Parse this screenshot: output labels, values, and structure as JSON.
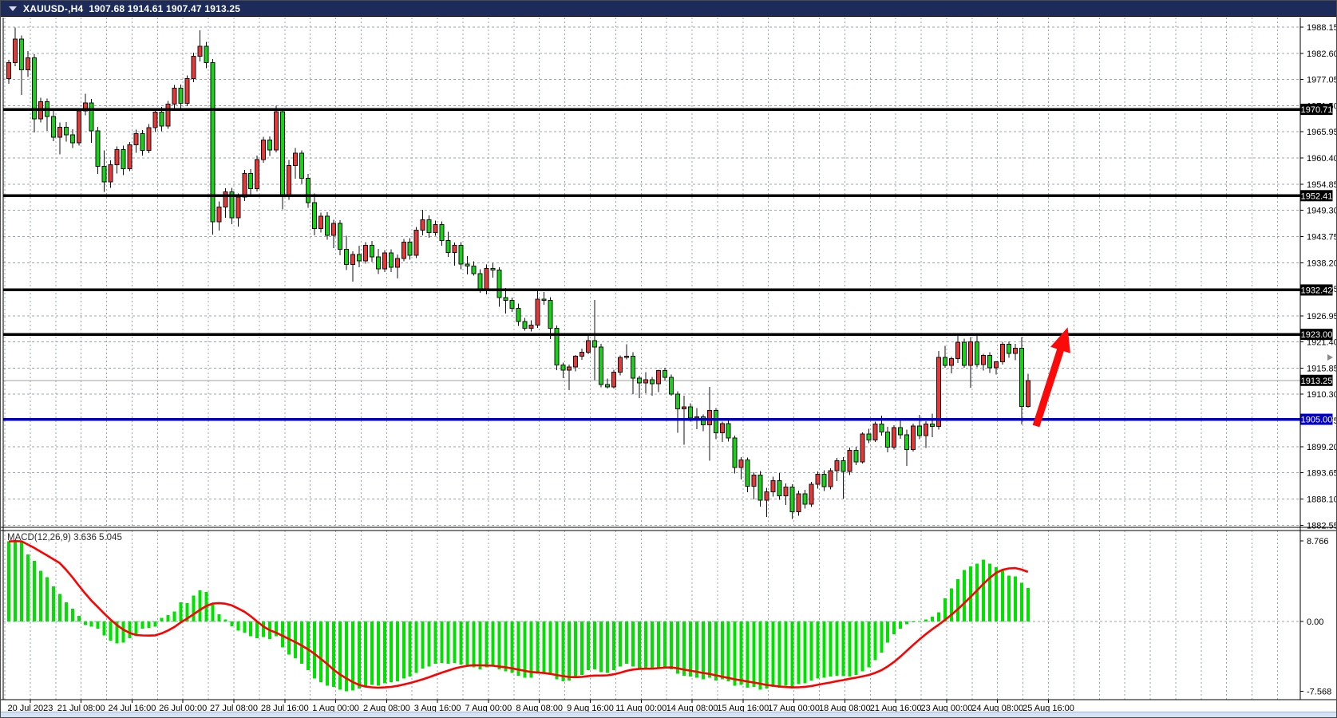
{
  "window": {
    "title": "XAUUSD-,H4  1907.68 1914.61 1907.47 1913.25",
    "symbol": "XAUUSD-",
    "timeframe": "H4"
  },
  "colors": {
    "bull_candle": "#e83737",
    "bear_candle": "#16d316",
    "candle_outline": "#111111",
    "level_black": "#000000",
    "level_blue": "#0000c8",
    "current_price_line": "#a0a0a0",
    "grid": "#9aa5b2",
    "macd_histogram": "#00e100",
    "macd_signal": "#ff0000",
    "arrow": "#fb0a0a",
    "titlebar": "#1c2b5a",
    "axis_text": "#000000"
  },
  "price_axis": {
    "ticks": [
      "1988.15",
      "1982.60",
      "1977.05",
      "1971.50",
      "1965.95",
      "1960.40",
      "1954.85",
      "1949.30",
      "1943.75",
      "1938.20",
      "1932.65",
      "1926.95",
      "1921.40",
      "1915.85",
      "1910.30",
      "1904.75",
      "1899.20",
      "1893.65",
      "1888.10",
      "1882.55"
    ]
  },
  "time_axis": {
    "labels": [
      "20 Jul 2023",
      "21 Jul 08:00",
      "24 Jul 16:00",
      "26 Jul 00:00",
      "27 Jul 08:00",
      "28 Jul 16:00",
      "1 Aug 00:00",
      "2 Aug 08:00",
      "3 Aug 16:00",
      "7 Aug 00:00",
      "8 Aug 08:00",
      "9 Aug 16:00",
      "11 Aug 00:00",
      "14 Aug 08:00",
      "15 Aug 16:00",
      "17 Aug 00:00",
      "18 Aug 08:00",
      "21 Aug 16:00",
      "23 Aug 00:00",
      "24 Aug 08:00",
      "25 Aug 16:00"
    ]
  },
  "indicator_label": "MACD(12,26,9) 3.636 5.045",
  "chart_data": {
    "type": "candlestick",
    "symbol": "XAUUSD-",
    "timeframe": "H4",
    "title": "XAUUSD-,H4",
    "current_bar": {
      "open": 1907.68,
      "high": 1914.61,
      "low": 1907.47,
      "close": 1913.25
    },
    "ylim": [
      1882.55,
      1988.15
    ],
    "grid": true,
    "color_scheme_note": "bull candles red, bear candles green",
    "horizontal_levels": [
      {
        "price": 1970.71,
        "label": "1970.71",
        "color": "#000000"
      },
      {
        "price": 1952.41,
        "label": "1952.41",
        "color": "#000000"
      },
      {
        "price": 1932.42,
        "label": "1932.42",
        "color": "#000000"
      },
      {
        "price": 1923.0,
        "label": "1923.00",
        "color": "#000000"
      },
      {
        "price": 1905.0,
        "label": "1905.00",
        "color": "#0000c8"
      }
    ],
    "current_price": {
      "value": 1913.25,
      "label": "1913.25"
    },
    "candles": [
      [
        1977.2,
        1981.2,
        1976.1,
        1980.6
      ],
      [
        1980.6,
        1988.1,
        1979.9,
        1985.6
      ],
      [
        1985.6,
        1986.4,
        1973.8,
        1979.1
      ],
      [
        1979.1,
        1983.1,
        1977.6,
        1981.6
      ],
      [
        1981.6,
        1982.4,
        1965.8,
        1968.7
      ],
      [
        1968.7,
        1973.2,
        1967.9,
        1972.3
      ],
      [
        1972.3,
        1973.0,
        1966.2,
        1969.2
      ],
      [
        1969.2,
        1970.5,
        1964.0,
        1964.8
      ],
      [
        1964.8,
        1967.9,
        1961.2,
        1966.9
      ],
      [
        1966.9,
        1968.0,
        1963.9,
        1965.3
      ],
      [
        1965.3,
        1966.5,
        1962.5,
        1963.6
      ],
      [
        1963.6,
        1971.0,
        1963.0,
        1970.4
      ],
      [
        1970.4,
        1974.0,
        1969.5,
        1972.1
      ],
      [
        1972.1,
        1972.9,
        1963.6,
        1966.2
      ],
      [
        1966.2,
        1967.0,
        1957.0,
        1958.6
      ],
      [
        1958.6,
        1962.0,
        1953.2,
        1955.3
      ],
      [
        1955.3,
        1959.9,
        1954.1,
        1959.0
      ],
      [
        1959.0,
        1962.9,
        1957.1,
        1962.2
      ],
      [
        1962.2,
        1963.0,
        1956.8,
        1958.1
      ],
      [
        1958.1,
        1963.8,
        1957.6,
        1963.2
      ],
      [
        1963.2,
        1966.4,
        1961.5,
        1965.6
      ],
      [
        1965.6,
        1966.3,
        1960.9,
        1962.0
      ],
      [
        1962.0,
        1967.6,
        1961.4,
        1966.8
      ],
      [
        1966.8,
        1970.8,
        1965.9,
        1970.1
      ],
      [
        1970.1,
        1971.2,
        1966.1,
        1967.2
      ],
      [
        1967.2,
        1972.5,
        1966.6,
        1971.8
      ],
      [
        1971.8,
        1975.9,
        1971.0,
        1975.2
      ],
      [
        1975.2,
        1976.0,
        1970.9,
        1972.0
      ],
      [
        1972.0,
        1977.9,
        1971.4,
        1977.2
      ],
      [
        1977.2,
        1982.7,
        1976.5,
        1982.0
      ],
      [
        1982.0,
        1987.5,
        1980.9,
        1984.1
      ],
      [
        1984.1,
        1985.0,
        1979.4,
        1980.6
      ],
      [
        1980.6,
        1981.4,
        1944.2,
        1946.9
      ],
      [
        1946.9,
        1951.2,
        1945.0,
        1950.0
      ],
      [
        1950.0,
        1954.0,
        1947.7,
        1953.2
      ],
      [
        1953.2,
        1954.1,
        1946.4,
        1947.7
      ],
      [
        1947.7,
        1952.9,
        1945.9,
        1952.1
      ],
      [
        1952.1,
        1957.9,
        1951.3,
        1957.1
      ],
      [
        1957.1,
        1958.0,
        1952.6,
        1953.9
      ],
      [
        1953.9,
        1960.9,
        1953.3,
        1960.1
      ],
      [
        1960.1,
        1964.9,
        1959.4,
        1964.2
      ],
      [
        1964.2,
        1965.0,
        1960.8,
        1962.1
      ],
      [
        1962.1,
        1971.5,
        1961.6,
        1970.2
      ],
      [
        1970.2,
        1970.9,
        1949.5,
        1952.2
      ],
      [
        1952.2,
        1960.0,
        1951.5,
        1958.8
      ],
      [
        1958.8,
        1962.5,
        1956.0,
        1961.4
      ],
      [
        1961.4,
        1962.0,
        1954.9,
        1956.1
      ],
      [
        1956.1,
        1957.0,
        1949.8,
        1950.9
      ],
      [
        1950.9,
        1952.9,
        1944.0,
        1945.4
      ],
      [
        1945.4,
        1948.8,
        1944.6,
        1948.1
      ],
      [
        1948.1,
        1948.9,
        1943.1,
        1944.0
      ],
      [
        1944.0,
        1947.3,
        1941.3,
        1946.5
      ],
      [
        1946.5,
        1947.2,
        1939.8,
        1941.0
      ],
      [
        1941.0,
        1943.9,
        1936.6,
        1937.8
      ],
      [
        1937.8,
        1940.6,
        1934.2,
        1939.9
      ],
      [
        1939.9,
        1941.8,
        1937.2,
        1938.6
      ],
      [
        1938.6,
        1942.6,
        1938.0,
        1941.9
      ],
      [
        1941.9,
        1942.8,
        1938.3,
        1939.4
      ],
      [
        1939.4,
        1941.1,
        1935.8,
        1936.9
      ],
      [
        1936.9,
        1940.9,
        1936.2,
        1940.3
      ],
      [
        1940.3,
        1941.0,
        1936.2,
        1937.2
      ],
      [
        1937.2,
        1939.9,
        1934.9,
        1939.1
      ],
      [
        1939.1,
        1943.2,
        1938.5,
        1942.6
      ],
      [
        1942.6,
        1943.4,
        1938.8,
        1939.8
      ],
      [
        1939.8,
        1945.8,
        1939.2,
        1945.1
      ],
      [
        1945.1,
        1949.4,
        1944.0,
        1947.3
      ],
      [
        1947.3,
        1948.2,
        1943.5,
        1944.6
      ],
      [
        1944.6,
        1947.1,
        1943.9,
        1946.3
      ],
      [
        1946.3,
        1947.0,
        1941.8,
        1942.9
      ],
      [
        1942.9,
        1944.8,
        1939.4,
        1940.4
      ],
      [
        1940.4,
        1942.5,
        1937.6,
        1941.9
      ],
      [
        1941.9,
        1942.6,
        1936.8,
        1937.9
      ],
      [
        1937.9,
        1939.6,
        1935.7,
        1937.5
      ],
      [
        1937.5,
        1938.5,
        1935.5,
        1935.9
      ],
      [
        1935.9,
        1936.8,
        1931.8,
        1932.4
      ],
      [
        1932.4,
        1937.8,
        1931.5,
        1937.0
      ],
      [
        1937.0,
        1938.2,
        1935.0,
        1936.6
      ],
      [
        1936.6,
        1937.2,
        1928.9,
        1930.8
      ],
      [
        1930.8,
        1932.8,
        1927.4,
        1930.2
      ],
      [
        1930.2,
        1930.8,
        1927.8,
        1928.5
      ],
      [
        1928.5,
        1929.5,
        1924.8,
        1925.7
      ],
      [
        1925.7,
        1926.5,
        1923.8,
        1924.3
      ],
      [
        1924.3,
        1926.0,
        1923.6,
        1925.0
      ],
      [
        1925.0,
        1932.2,
        1924.4,
        1930.5
      ],
      [
        1930.5,
        1932.0,
        1929.3,
        1930.2
      ],
      [
        1930.2,
        1930.9,
        1922.0,
        1924.3
      ],
      [
        1924.3,
        1924.9,
        1915.4,
        1916.5
      ],
      [
        1916.5,
        1917.0,
        1913.7,
        1915.4
      ],
      [
        1915.4,
        1916.6,
        1911.2,
        1916.1
      ],
      [
        1916.1,
        1918.6,
        1915.2,
        1918.4
      ],
      [
        1918.4,
        1920.0,
        1917.6,
        1919.2
      ],
      [
        1919.2,
        1923.0,
        1918.8,
        1921.7
      ],
      [
        1921.7,
        1930.3,
        1913.3,
        1920.3
      ],
      [
        1920.3,
        1921.0,
        1911.8,
        1912.4
      ],
      [
        1912.4,
        1913.6,
        1911.5,
        1911.9
      ],
      [
        1911.9,
        1915.5,
        1911.5,
        1915.0
      ],
      [
        1915.0,
        1918.5,
        1914.3,
        1918.1
      ],
      [
        1918.1,
        1920.9,
        1917.7,
        1918.4
      ],
      [
        1918.4,
        1919.2,
        1910.3,
        1913.7
      ],
      [
        1913.7,
        1914.2,
        1909.5,
        1912.7
      ],
      [
        1912.7,
        1915.0,
        1910.5,
        1913.4
      ],
      [
        1913.4,
        1914.0,
        1910.0,
        1912.5
      ],
      [
        1912.5,
        1915.5,
        1910.8,
        1915.3
      ],
      [
        1915.3,
        1915.9,
        1913.2,
        1913.9
      ],
      [
        1913.9,
        1914.5,
        1910.0,
        1910.3
      ],
      [
        1910.3,
        1910.9,
        1902.1,
        1907.2
      ],
      [
        1907.2,
        1910.0,
        1899.6,
        1907.6
      ],
      [
        1907.6,
        1908.4,
        1904.5,
        1905.3
      ],
      [
        1905.3,
        1907.4,
        1902.9,
        1905.5
      ],
      [
        1905.5,
        1906.0,
        1902.5,
        1903.8
      ],
      [
        1903.8,
        1911.9,
        1896.2,
        1906.9
      ],
      [
        1906.9,
        1907.4,
        1900.8,
        1902.1
      ],
      [
        1902.1,
        1904.5,
        1900.2,
        1904.1
      ],
      [
        1904.1,
        1904.8,
        1900.3,
        1901.0
      ],
      [
        1901.0,
        1901.5,
        1893.5,
        1894.8
      ],
      [
        1894.8,
        1897.0,
        1892.2,
        1896.4
      ],
      [
        1896.4,
        1896.9,
        1889.5,
        1890.8
      ],
      [
        1890.8,
        1893.8,
        1888.0,
        1893.2
      ],
      [
        1893.2,
        1894.0,
        1886.5,
        1887.8
      ],
      [
        1887.8,
        1890.5,
        1884.3,
        1889.6
      ],
      [
        1889.6,
        1892.8,
        1888.6,
        1892.0
      ],
      [
        1892.0,
        1893.6,
        1887.9,
        1888.8
      ],
      [
        1888.8,
        1891.4,
        1886.8,
        1890.6
      ],
      [
        1890.6,
        1891.2,
        1883.9,
        1885.4
      ],
      [
        1885.4,
        1889.9,
        1884.5,
        1889.2
      ],
      [
        1889.2,
        1890.0,
        1886.1,
        1887.0
      ],
      [
        1887.0,
        1891.7,
        1886.4,
        1891.2
      ],
      [
        1891.2,
        1893.9,
        1890.3,
        1893.3
      ],
      [
        1893.3,
        1894.2,
        1889.8,
        1890.7
      ],
      [
        1890.7,
        1894.6,
        1890.1,
        1894.1
      ],
      [
        1894.1,
        1896.8,
        1891.9,
        1896.2
      ],
      [
        1896.2,
        1897.0,
        1888.2,
        1893.9
      ],
      [
        1893.9,
        1899.0,
        1893.2,
        1898.4
      ],
      [
        1898.4,
        1899.2,
        1895.3,
        1896.0
      ],
      [
        1896.0,
        1902.2,
        1895.6,
        1901.9
      ],
      [
        1901.9,
        1903.0,
        1899.9,
        1900.6
      ],
      [
        1900.6,
        1904.5,
        1900.2,
        1904.0
      ],
      [
        1904.0,
        1905.8,
        1901.5,
        1902.3
      ],
      [
        1902.3,
        1903.4,
        1898.0,
        1899.1
      ],
      [
        1899.1,
        1903.7,
        1898.6,
        1903.2
      ],
      [
        1903.2,
        1904.9,
        1900.9,
        1901.7
      ],
      [
        1901.7,
        1902.8,
        1895.1,
        1898.6
      ],
      [
        1898.6,
        1904.1,
        1898.2,
        1903.6
      ],
      [
        1903.6,
        1905.9,
        1900.8,
        1901.5
      ],
      [
        1901.5,
        1904.6,
        1898.9,
        1904.0
      ],
      [
        1904.0,
        1906.2,
        1901.2,
        1903.5
      ],
      [
        1903.5,
        1919.5,
        1902.8,
        1918.1
      ],
      [
        1918.1,
        1920.6,
        1915.9,
        1916.4
      ],
      [
        1916.4,
        1918.3,
        1914.7,
        1917.9
      ],
      [
        1917.9,
        1923.0,
        1916.9,
        1921.3
      ],
      [
        1921.3,
        1922.1,
        1915.9,
        1916.4
      ],
      [
        1916.4,
        1922.4,
        1911.7,
        1921.4
      ],
      [
        1921.4,
        1922.7,
        1916.0,
        1916.6
      ],
      [
        1916.6,
        1918.9,
        1915.3,
        1918.5
      ],
      [
        1918.5,
        1919.2,
        1914.8,
        1915.9
      ],
      [
        1915.9,
        1917.4,
        1914.5,
        1917.2
      ],
      [
        1917.2,
        1921.4,
        1916.6,
        1920.9
      ],
      [
        1920.9,
        1921.5,
        1918.0,
        1919.0
      ],
      [
        1919.0,
        1921.0,
        1917.5,
        1920.1
      ],
      [
        1920.1,
        1922.4,
        1903.9,
        1907.7
      ],
      [
        1907.68,
        1914.61,
        1907.47,
        1913.25
      ]
    ],
    "macd": {
      "type": "histogram+line",
      "params": "(12,26,9)",
      "macd_value": 3.636,
      "signal_value": 5.045,
      "ylim": [
        -7.568,
        8.766
      ],
      "axis_ticks": [
        {
          "label": "8.766",
          "value": 8.766
        },
        {
          "label": "0.00",
          "value": 0.0
        },
        {
          "label": "-7.568",
          "value": -7.568
        }
      ],
      "histogram": [
        8.7,
        8.766,
        8.68,
        7.3,
        6.6,
        5.5,
        4.8,
        3.8,
        3.0,
        2.1,
        1.4,
        0.6,
        -0.4,
        -0.55,
        -0.8,
        -1.5,
        -2.1,
        -2.4,
        -2.3,
        -1.8,
        -1.4,
        -0.8,
        -0.7,
        -0.55,
        0.4,
        0.7,
        1.1,
        2.1,
        2.0,
        2.8,
        3.4,
        3.2,
        1.8,
        0.8,
        0.2,
        -0.5,
        -1.0,
        -1.2,
        -1.6,
        -1.8,
        -1.7,
        -1.9,
        -1.6,
        -2.8,
        -3.6,
        -4.0,
        -4.6,
        -5.3,
        -6.2,
        -6.6,
        -7.0,
        -7.1,
        -7.4,
        -7.568,
        -7.5,
        -7.3,
        -7.0,
        -6.9,
        -7.0,
        -6.7,
        -6.6,
        -6.5,
        -6.2,
        -6.0,
        -5.6,
        -5.1,
        -4.9,
        -4.6,
        -4.5,
        -4.6,
        -4.5,
        -4.7,
        -4.9,
        -5.0,
        -5.2,
        -5.0,
        -4.9,
        -5.2,
        -5.4,
        -5.6,
        -5.9,
        -6.1,
        -6.1,
        -5.7,
        -5.5,
        -5.8,
        -6.3,
        -6.5,
        -6.4,
        -6.1,
        -5.8,
        -5.3,
        -5.2,
        -5.5,
        -5.6,
        -5.3,
        -4.9,
        -4.6,
        -4.9,
        -5.1,
        -5.1,
        -5.2,
        -5.0,
        -5.0,
        -5.2,
        -5.7,
        -5.9,
        -6.0,
        -6.1,
        -6.3,
        -6.1,
        -6.4,
        -6.3,
        -6.5,
        -7.0,
        -6.9,
        -7.2,
        -7.1,
        -7.4,
        -7.3,
        -7.1,
        -7.2,
        -7.0,
        -7.3,
        -6.8,
        -6.7,
        -6.4,
        -6.2,
        -6.1,
        -6.0,
        -5.9,
        -5.96,
        -6.0,
        -5.8,
        -5.4,
        -5.0,
        -4.2,
        -3.4,
        -2.3,
        -1.4,
        -0.76,
        -0.32,
        -0.1,
        0.05,
        0.2,
        0.5,
        1.0,
        2.5,
        3.6,
        4.6,
        5.6,
        6.0,
        6.3,
        6.7,
        6.3,
        5.9,
        5.5,
        5.0,
        4.9,
        4.2,
        3.636
      ],
      "signal_method": "sma9"
    },
    "annotations": [
      {
        "type": "arrow",
        "direction": "up",
        "from_price": 1905.2,
        "to_price": 1923.4,
        "color": "#fb0a0a"
      }
    ]
  }
}
